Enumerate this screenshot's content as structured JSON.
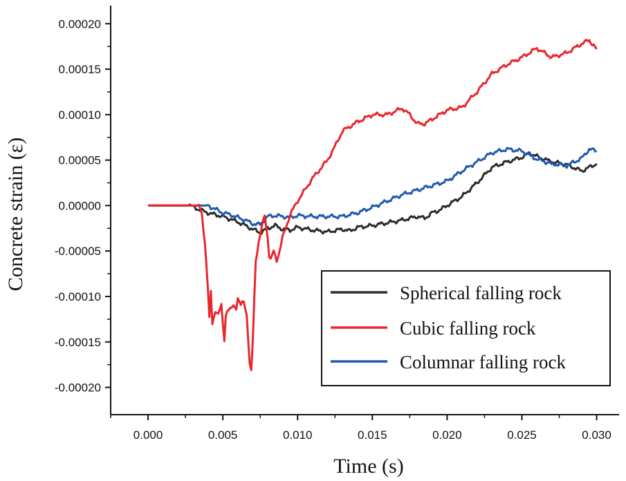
{
  "chart_data": {
    "type": "line",
    "title": "",
    "xlabel": "Time (s)",
    "ylabel": "Concrete strain (ε)",
    "xlim": [
      -0.0025,
      0.0315
    ],
    "ylim": [
      -0.00023,
      0.00022
    ],
    "x_ticks": [
      0.0,
      0.005,
      0.01,
      0.015,
      0.02,
      0.025,
      0.03
    ],
    "x_tick_labels": [
      "0.000",
      "0.005",
      "0.010",
      "0.015",
      "0.020",
      "0.025",
      "0.030"
    ],
    "y_ticks": [
      -0.0002,
      -0.00015,
      -0.0001,
      -5e-05,
      0.0,
      5e-05,
      0.0001,
      0.00015,
      0.0002
    ],
    "y_tick_labels": [
      "-0.00020",
      "-0.00015",
      "-0.00010",
      "-0.00005",
      "0.00000",
      "0.00005",
      "0.00010",
      "0.00015",
      "0.00020"
    ],
    "grid": false,
    "legend_position": "bottom-right",
    "series": [
      {
        "name": "Spherical falling rock",
        "color": "#2b2b2b",
        "x": [
          0.0,
          0.0028,
          0.0035,
          0.004,
          0.0045,
          0.005,
          0.0055,
          0.006,
          0.0065,
          0.007,
          0.0075,
          0.008,
          0.0085,
          0.009,
          0.0095,
          0.01,
          0.011,
          0.012,
          0.013,
          0.0135,
          0.014,
          0.015,
          0.016,
          0.017,
          0.018,
          0.0185,
          0.019,
          0.0195,
          0.02,
          0.021,
          0.022,
          0.023,
          0.024,
          0.025,
          0.0255,
          0.026,
          0.027,
          0.028,
          0.029,
          0.0295,
          0.03
        ],
        "y": [
          0.0,
          0.0,
          -5e-06,
          -8e-06,
          -1e-05,
          -1.2e-05,
          -1.5e-05,
          -1.8e-05,
          -2.2e-05,
          -2.6e-05,
          -3e-05,
          -2.5e-05,
          -2.2e-05,
          -2.6e-05,
          -2.7e-05,
          -2.4e-05,
          -2.7e-05,
          -2.9e-05,
          -2.6e-05,
          -2.8e-05,
          -2.4e-05,
          -2.2e-05,
          -1.9e-05,
          -1.6e-05,
          -1.2e-05,
          -1.4e-05,
          -8e-06,
          -5e-06,
          0.0,
          1e-05,
          2.5e-05,
          4.2e-05,
          4.8e-05,
          5.3e-05,
          5.8e-05,
          5.4e-05,
          4.8e-05,
          4.5e-05,
          3.8e-05,
          4.2e-05,
          4.6e-05
        ]
      },
      {
        "name": "Cubic falling rock",
        "color": "#e8262b",
        "x": [
          0.0,
          0.0034,
          0.0036,
          0.0038,
          0.004,
          0.0041,
          0.0042,
          0.0043,
          0.0045,
          0.0047,
          0.0049,
          0.005,
          0.0051,
          0.0052,
          0.0053,
          0.0055,
          0.0057,
          0.0059,
          0.006,
          0.0062,
          0.0064,
          0.0066,
          0.0068,
          0.0069,
          0.007,
          0.0072,
          0.0074,
          0.0076,
          0.0078,
          0.008,
          0.0081,
          0.0082,
          0.0084,
          0.0086,
          0.0088,
          0.009,
          0.0095,
          0.01,
          0.011,
          0.012,
          0.0125,
          0.013,
          0.014,
          0.015,
          0.016,
          0.017,
          0.0175,
          0.018,
          0.0185,
          0.019,
          0.02,
          0.021,
          0.022,
          0.023,
          0.024,
          0.025,
          0.0255,
          0.026,
          0.027,
          0.028,
          0.029,
          0.0295,
          0.03
        ],
        "y": [
          0.0,
          0.0,
          -1e-05,
          -4e-05,
          -9e-05,
          -0.000125,
          -9.5e-05,
          -0.00013,
          -0.000115,
          -0.00012,
          -0.00011,
          -0.00013,
          -0.000147,
          -0.00012,
          -0.000115,
          -0.000115,
          -0.00011,
          -0.000112,
          -0.000102,
          -0.00011,
          -0.000105,
          -0.00012,
          -0.000175,
          -0.000183,
          -0.00015,
          -6e-05,
          -4e-05,
          -2.5e-05,
          -1e-05,
          -3.5e-05,
          -5.5e-05,
          -6e-05,
          -5e-05,
          -6e-05,
          -5e-05,
          -3.5e-05,
          -1e-05,
          5e-06,
          3e-05,
          5e-05,
          6.5e-05,
          8.2e-05,
          9.2e-05,
          0.0001,
          0.0001,
          0.000107,
          0.0001,
          9e-05,
          9e-05,
          9.5e-05,
          0.000105,
          0.000108,
          0.000125,
          0.000145,
          0.000155,
          0.000163,
          0.000168,
          0.000173,
          0.000163,
          0.000168,
          0.000178,
          0.000182,
          0.000172
        ]
      },
      {
        "name": "Columnar falling rock",
        "color": "#1f5aad",
        "x": [
          0.0,
          0.0035,
          0.004,
          0.0045,
          0.005,
          0.0055,
          0.006,
          0.0065,
          0.007,
          0.0075,
          0.008,
          0.0085,
          0.009,
          0.0095,
          0.01,
          0.011,
          0.012,
          0.013,
          0.014,
          0.015,
          0.016,
          0.017,
          0.018,
          0.019,
          0.02,
          0.021,
          0.022,
          0.023,
          0.024,
          0.025,
          0.026,
          0.027,
          0.028,
          0.029,
          0.0295,
          0.03
        ],
        "y": [
          0.0,
          0.0,
          0.0,
          -4e-06,
          -8e-06,
          -1e-05,
          -1.3e-05,
          -1.6e-05,
          -2e-05,
          -2.1e-05,
          -1.2e-05,
          -1.1e-05,
          -1.2e-05,
          -1.3e-05,
          -1.1e-05,
          -1.2e-05,
          -1.2e-05,
          -1.2e-05,
          -8e-06,
          -2e-06,
          5e-06,
          1.2e-05,
          1.7e-05,
          2.2e-05,
          2.7e-05,
          3.8e-05,
          4.8e-05,
          5.8e-05,
          6.2e-05,
          6e-05,
          5.1e-05,
          4.6e-05,
          4.4e-05,
          5.2e-05,
          6.2e-05,
          6e-05
        ]
      }
    ]
  }
}
